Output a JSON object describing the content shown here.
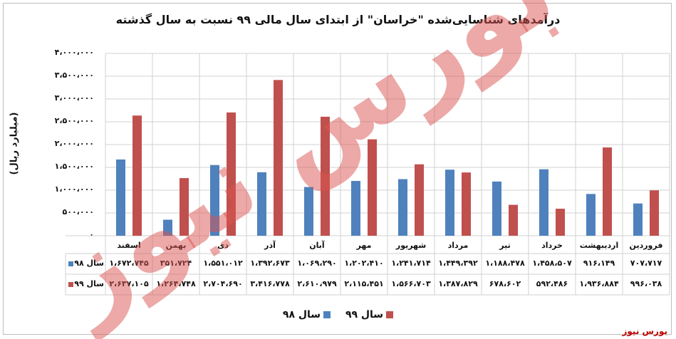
{
  "chart_data": {
    "type": "bar",
    "title": "درآمدهای شناسایی‌شده \"خراسان\" از ابتدای سال مالی ۹۹ نسبت به سال گذشته",
    "ylabel": "(میلیارد ریال)",
    "ylim": [
      0,
      4000000
    ],
    "yticks": [
      0,
      500000,
      1000000,
      1500000,
      2000000,
      2500000,
      3000000,
      3500000,
      4000000
    ],
    "ytick_labels": [
      "۰",
      "۵۰۰،۰۰۰",
      "۱،۰۰۰،۰۰۰",
      "۱،۵۰۰،۰۰۰",
      "۲،۰۰۰،۰۰۰",
      "۲،۵۰۰،۰۰۰",
      "۳،۰۰۰،۰۰۰",
      "۳،۵۰۰،۰۰۰",
      "۴،۰۰۰،۰۰۰"
    ],
    "categories": [
      "فروردین",
      "اردیبهشت",
      "خرداد",
      "تیر",
      "مرداد",
      "شهریور",
      "مهر",
      "آبان",
      "آذر",
      "دی",
      "بهمن",
      "اسفند"
    ],
    "series": [
      {
        "name": "سال ۹۸",
        "color": "#4f81bd",
        "values": [
          707717,
          916149,
          1458507,
          1188478,
          1449392,
          1241714,
          1202410,
          1069290,
          1392673,
          1551012,
          351724,
          1672745
        ],
        "labels": [
          "۷۰۷،۷۱۷",
          "۹۱۶،۱۴۹",
          "۱،۴۵۸،۵۰۷",
          "۱،۱۸۸،۴۷۸",
          "۱،۴۴۹،۳۹۲",
          "۱،۲۴۱،۷۱۴",
          "۱،۲۰۲،۴۱۰",
          "۱،۰۶۹،۲۹۰",
          "۱،۳۹۲،۶۷۳",
          "۱،۵۵۱،۰۱۲",
          "۳۵۱،۷۲۴",
          "۱،۶۷۲،۷۴۵"
        ]
      },
      {
        "name": "سال ۹۹",
        "color": "#c0504d",
        "values": [
          996038,
          1936884,
          592486,
          678602,
          1387829,
          1566703,
          2115451,
          2610979,
          3416778,
          2704690,
          1264748,
          2637105
        ],
        "labels": [
          "۹۹۶،۰۳۸",
          "۱،۹۳۶،۸۸۴",
          "۵۹۲،۴۸۶",
          "۶۷۸،۶۰۲",
          "۱،۳۸۷،۸۲۹",
          "۱،۵۶۶،۷۰۳",
          "۲،۱۱۵،۴۵۱",
          "۲،۶۱۰،۹۷۹",
          "۳،۴۱۶،۷۷۸",
          "۲،۷۰۴،۶۹۰",
          "۱،۲۶۴،۷۴۸",
          "۲،۶۳۷،۱۰۵"
        ]
      }
    ],
    "grid": true,
    "legend": "bottom-center"
  },
  "watermark_text": "بورس نیوز",
  "source": "بورس نیوز"
}
